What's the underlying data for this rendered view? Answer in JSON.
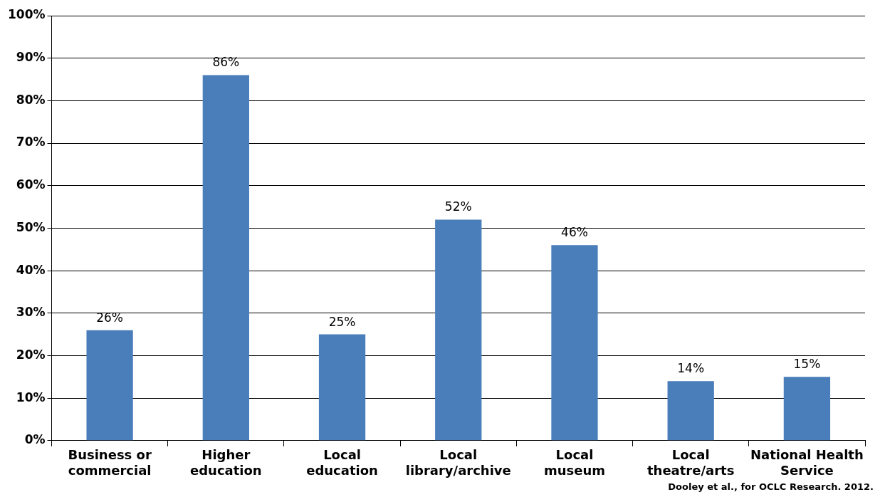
{
  "chart_data": {
    "type": "bar",
    "categories": [
      "Business or commercial",
      "Higher education",
      "Local education",
      "Local library/archive",
      "Local museum",
      "Local theatre/arts",
      "National Health Service"
    ],
    "values": [
      26,
      86,
      25,
      52,
      46,
      14,
      15
    ],
    "value_labels": [
      "26%",
      "86%",
      "25%",
      "52%",
      "46%",
      "14%",
      "15%"
    ],
    "color": "#4a7ebb",
    "ylim": [
      0,
      100
    ],
    "yticks": [
      {
        "value": 0,
        "label": "0%"
      },
      {
        "value": 10,
        "label": "10%"
      },
      {
        "value": 20,
        "label": "20%"
      },
      {
        "value": 30,
        "label": "30%"
      },
      {
        "value": 40,
        "label": "40%"
      },
      {
        "value": 50,
        "label": "50%"
      },
      {
        "value": 60,
        "label": "60%"
      },
      {
        "value": 70,
        "label": "70%"
      },
      {
        "value": 80,
        "label": "80%"
      },
      {
        "value": 90,
        "label": "90%"
      },
      {
        "value": 100,
        "label": "100%"
      }
    ],
    "grid": "y",
    "legend": false,
    "annotations": [
      "Dooley et al., for OCLC Research. 2012."
    ]
  }
}
